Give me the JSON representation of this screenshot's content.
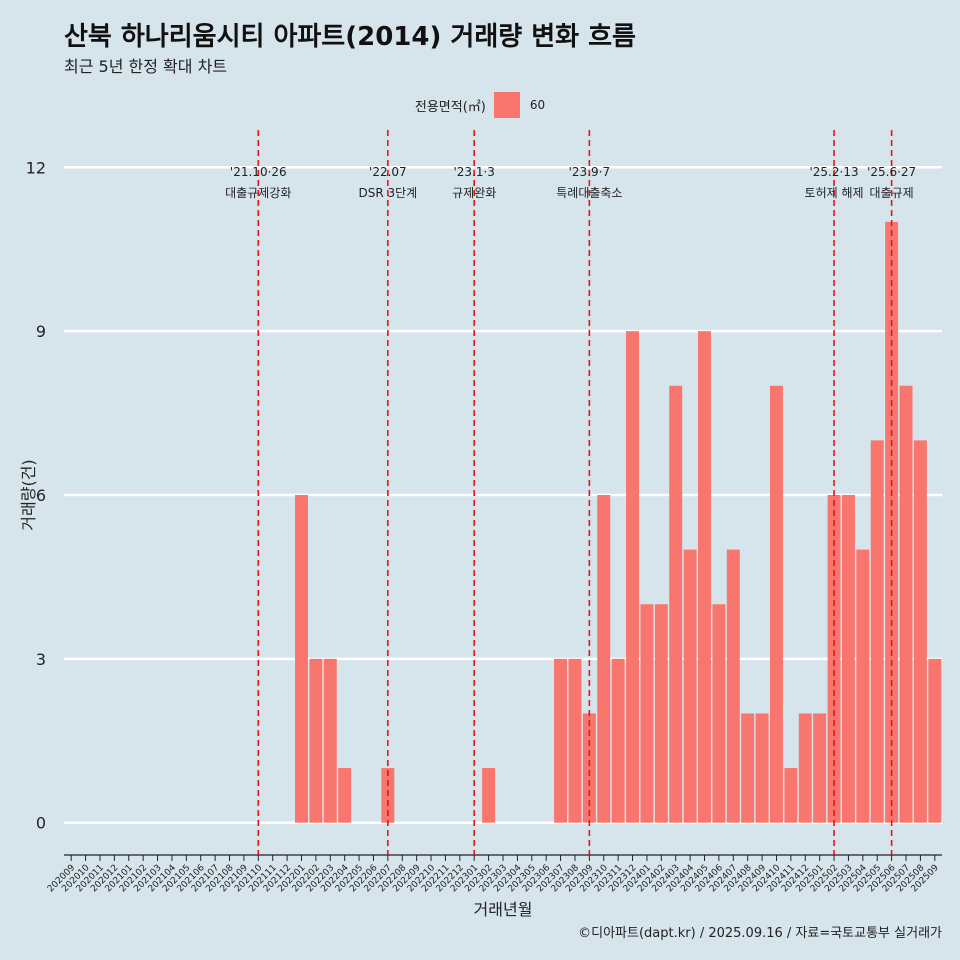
{
  "header": {
    "title": "산북 하나리움시티 아파트(2014) 거래량 변화 흐름",
    "subtitle": "최근 5년 한정 확대 차트"
  },
  "legend": {
    "title": "전용면적(㎡)",
    "entries": [
      {
        "label": "60",
        "color": "#f8766d"
      }
    ]
  },
  "caption": "©디아파트(dapt.kr) / 2025.09.16 / 자료=국토교통부 실거래가",
  "chart_data": {
    "type": "bar",
    "xlabel": "거래년월",
    "ylabel": "거래량(건)",
    "ylim": [
      -0.5,
      12.5
    ],
    "yticks": [
      0,
      3,
      6,
      9,
      12
    ],
    "grid": "horizontal",
    "legend_position": "top",
    "bar_color": "#f8766d",
    "categories": [
      "202009",
      "202010",
      "202011",
      "202012",
      "202101",
      "202102",
      "202103",
      "202104",
      "202105",
      "202106",
      "202107",
      "202108",
      "202109",
      "202110",
      "202111",
      "202112",
      "202201",
      "202202",
      "202203",
      "202204",
      "202205",
      "202206",
      "202207",
      "202208",
      "202209",
      "202210",
      "202211",
      "202212",
      "202301",
      "202302",
      "202303",
      "202304",
      "202305",
      "202306",
      "202307",
      "202308",
      "202309",
      "202310",
      "202311",
      "202312",
      "202401",
      "202402",
      "202403",
      "202404",
      "202405",
      "202406",
      "202407",
      "202408",
      "202409",
      "202410",
      "202411",
      "202412",
      "202501",
      "202502",
      "202503",
      "202504",
      "202505",
      "202506",
      "202507",
      "202508",
      "202509"
    ],
    "values": [
      null,
      null,
      null,
      null,
      null,
      null,
      null,
      null,
      null,
      null,
      null,
      null,
      null,
      null,
      null,
      null,
      6,
      3,
      3,
      1,
      null,
      null,
      1,
      null,
      null,
      null,
      null,
      null,
      null,
      1,
      null,
      null,
      null,
      null,
      3,
      3,
      2,
      6,
      3,
      9,
      4,
      4,
      8,
      5,
      9,
      4,
      5,
      2,
      2,
      8,
      1,
      2,
      2,
      6,
      6,
      5,
      7,
      11,
      8,
      7,
      3
    ],
    "annotations": [
      {
        "x": "202110",
        "date": "'21.10·26",
        "label": "대출규제강화"
      },
      {
        "x": "202207",
        "date": "'22.07",
        "label": "DSR 3단계"
      },
      {
        "x": "202301",
        "date": "'23.1·3",
        "label": "규제완화"
      },
      {
        "x": "202309",
        "date": "'23.9·7",
        "label": "특례대출축소"
      },
      {
        "x": "202502",
        "date": "'25.2·13",
        "label": "토허제 해제"
      },
      {
        "x": "202506",
        "date": "'25.6·27",
        "label": "대출규제"
      }
    ]
  }
}
